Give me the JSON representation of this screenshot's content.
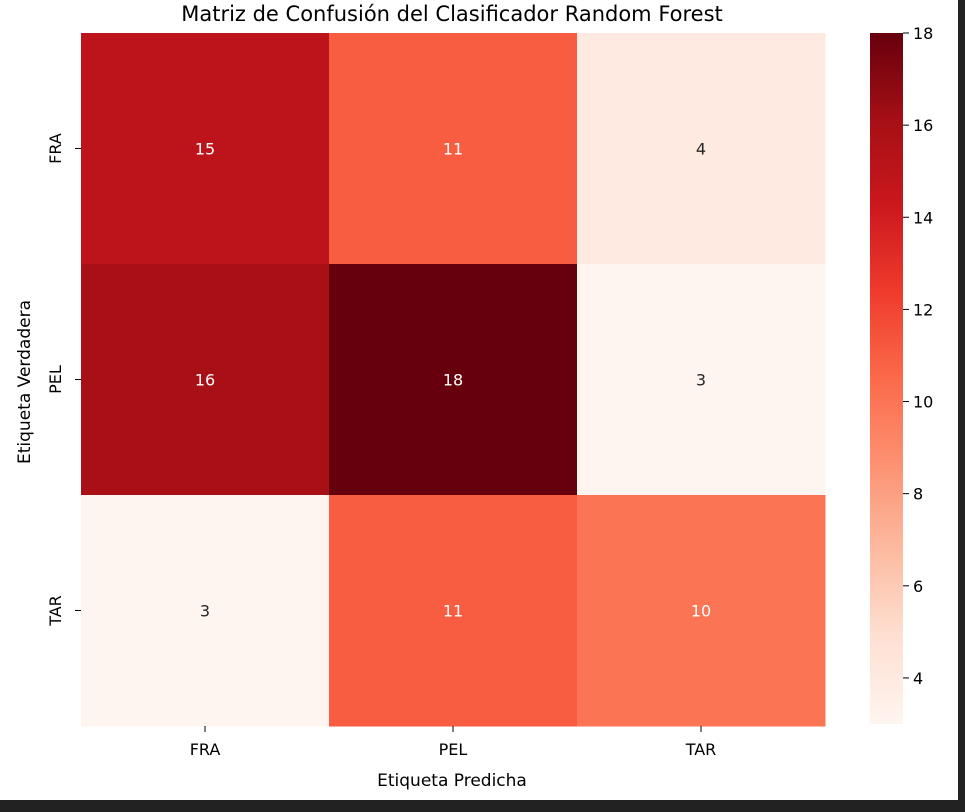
{
  "chart_data": {
    "type": "heatmap",
    "title": "Matriz de Confusión del Clasificador Random Forest",
    "xlabel": "Etiqueta Predicha",
    "ylabel": "Etiqueta Verdadera",
    "x_categories": [
      "FRA",
      "PEL",
      "TAR"
    ],
    "y_categories": [
      "FRA",
      "PEL",
      "TAR"
    ],
    "values": [
      [
        15,
        11,
        4
      ],
      [
        16,
        18,
        3
      ],
      [
        3,
        11,
        10
      ]
    ],
    "colormap": "Reds",
    "colorbar": {
      "range": [
        3,
        18
      ],
      "ticks": [
        "4",
        "6",
        "8",
        "10",
        "12",
        "14",
        "16",
        "18"
      ],
      "position": "right"
    }
  }
}
